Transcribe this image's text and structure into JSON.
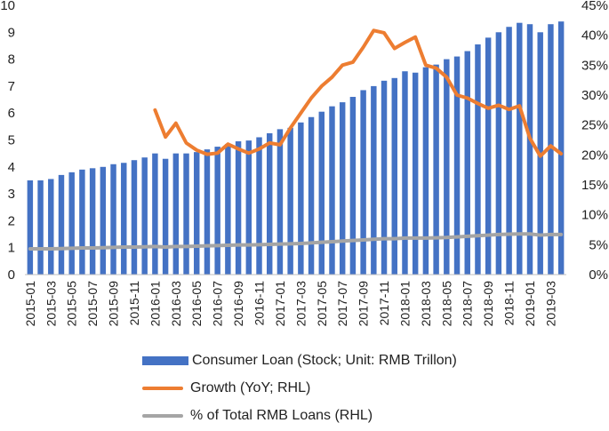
{
  "chart_data": {
    "type": "bar",
    "categories": [
      "2015-01",
      "2015-02",
      "2015-03",
      "2015-04",
      "2015-05",
      "2015-06",
      "2015-07",
      "2015-08",
      "2015-09",
      "2015-10",
      "2015-11",
      "2015-12",
      "2016-01",
      "2016-02",
      "2016-03",
      "2016-04",
      "2016-05",
      "2016-06",
      "2016-07",
      "2016-08",
      "2016-09",
      "2016-10",
      "2016-11",
      "2016-12",
      "2017-01",
      "2017-02",
      "2017-03",
      "2017-04",
      "2017-05",
      "2017-06",
      "2017-07",
      "2017-08",
      "2017-09",
      "2017-10",
      "2017-11",
      "2017-12",
      "2018-01",
      "2018-02",
      "2018-03",
      "2018-04",
      "2018-05",
      "2018-06",
      "2018-07",
      "2018-08",
      "2018-09",
      "2018-10",
      "2018-11",
      "2018-12",
      "2019-01",
      "2019-02",
      "2019-03",
      "2019-04"
    ],
    "x_tick_labels": [
      "2015-01",
      "2015-03",
      "2015-05",
      "2015-07",
      "2015-09",
      "2015-11",
      "2016-01",
      "2016-03",
      "2016-05",
      "2016-07",
      "2016-09",
      "2016-11",
      "2017-01",
      "2017-03",
      "2017-05",
      "2017-07",
      "2017-09",
      "2017-11",
      "2018-01",
      "2018-03",
      "2018-05",
      "2018-07",
      "2018-09",
      "2018-11",
      "2019-01",
      "2019-03"
    ],
    "series": [
      {
        "name": "Consumer Loan (Stock; Unit: RMB Trillon)",
        "type": "bar",
        "axis": "left",
        "color": "#4472C4",
        "values": [
          3.5,
          3.5,
          3.55,
          3.7,
          3.8,
          3.9,
          3.95,
          4.0,
          4.1,
          4.15,
          4.25,
          4.35,
          4.5,
          4.3,
          4.5,
          4.5,
          4.55,
          4.65,
          4.75,
          4.85,
          4.95,
          4.98,
          5.1,
          5.25,
          5.4,
          5.45,
          5.65,
          5.85,
          6.05,
          6.25,
          6.4,
          6.6,
          6.85,
          7.0,
          7.2,
          7.3,
          7.55,
          7.5,
          7.7,
          7.8,
          8.0,
          8.1,
          8.3,
          8.55,
          8.8,
          9.0,
          9.2,
          9.35,
          9.3,
          9.0,
          9.3,
          9.4
        ]
      },
      {
        "name": "Growth (YoY; RHL)",
        "type": "line",
        "axis": "right",
        "color": "#ED7D31",
        "values": [
          null,
          null,
          null,
          null,
          null,
          null,
          null,
          null,
          null,
          null,
          null,
          null,
          27.5,
          23.0,
          25.3,
          22.0,
          20.8,
          20.1,
          20.3,
          21.8,
          21.0,
          20.3,
          21.0,
          22.0,
          21.7,
          24.5,
          27.0,
          29.5,
          31.5,
          33.0,
          35.0,
          35.5,
          38.0,
          40.8,
          40.4,
          37.8,
          38.8,
          39.7,
          35.0,
          34.5,
          33.0,
          30.0,
          29.5,
          28.6,
          27.8,
          28.3,
          27.6,
          28.2,
          22.8,
          19.8,
          21.5,
          20.2
        ]
      },
      {
        "name": "% of Total RMB Loans (RHL)",
        "type": "line",
        "axis": "right",
        "color": "#A5A5A5",
        "values": [
          4.3,
          4.3,
          4.3,
          4.35,
          4.4,
          4.45,
          4.45,
          4.5,
          4.55,
          4.6,
          4.6,
          4.65,
          4.7,
          4.6,
          4.7,
          4.7,
          4.75,
          4.8,
          4.85,
          4.9,
          4.95,
          4.95,
          5.0,
          5.05,
          5.1,
          5.15,
          5.2,
          5.3,
          5.4,
          5.5,
          5.6,
          5.7,
          5.8,
          5.9,
          6.0,
          6.0,
          6.1,
          6.1,
          6.1,
          6.15,
          6.2,
          6.3,
          6.4,
          6.5,
          6.6,
          6.7,
          6.75,
          6.8,
          6.8,
          6.6,
          6.7,
          6.7
        ]
      }
    ],
    "y_left": {
      "min": 0,
      "max": 10,
      "step": 1,
      "tick_labels": [
        "0",
        "1",
        "2",
        "3",
        "4",
        "5",
        "6",
        "7",
        "8",
        "9",
        "10"
      ]
    },
    "y_right": {
      "min": 0,
      "max": 45,
      "step": 5,
      "tick_labels": [
        "0%",
        "5%",
        "10%",
        "15%",
        "20%",
        "25%",
        "30%",
        "35%",
        "40%",
        "45%"
      ]
    },
    "grid": false,
    "legend_position": "bottom"
  },
  "legend": {
    "consumer_loan": "Consumer Loan (Stock; Unit: RMB Trillon)",
    "growth": "Growth (YoY; RHL)",
    "share": "% of Total RMB Loans (RHL)"
  }
}
